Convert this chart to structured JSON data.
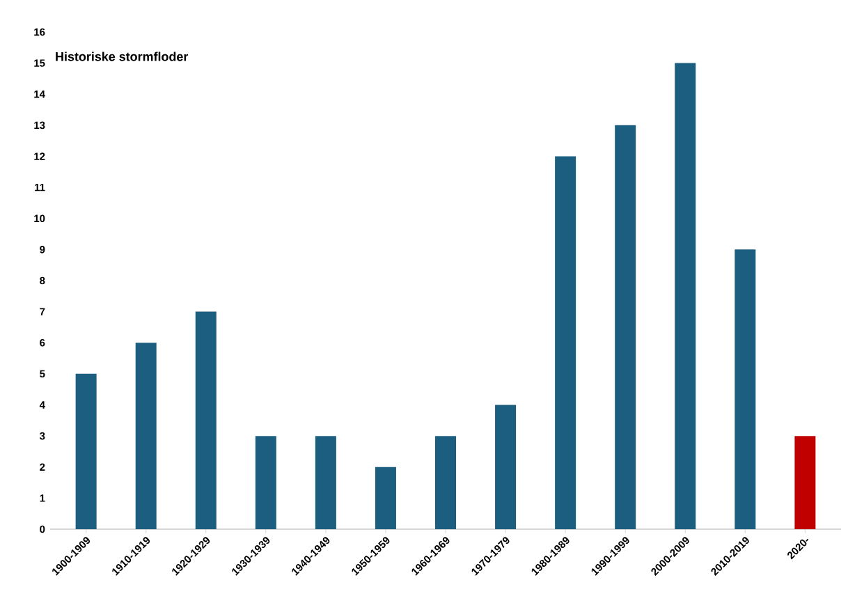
{
  "chart_data": {
    "type": "bar",
    "title": "Historiske stormfloder",
    "categories": [
      "1900-1909",
      "1910-1919",
      "1920-1929",
      "1930-1939",
      "1940-1949",
      "1950-1959",
      "1960-1969",
      "1970-1979",
      "1980-1989",
      "1990-1999",
      "2000-2009",
      "2010-2019",
      "2020-"
    ],
    "values": [
      5,
      6,
      7,
      3,
      3,
      2,
      3,
      4,
      12,
      13,
      15,
      9,
      3
    ],
    "colors": [
      "#1b5e80",
      "#1b5e80",
      "#1b5e80",
      "#1b5e80",
      "#1b5e80",
      "#1b5e80",
      "#1b5e80",
      "#1b5e80",
      "#1b5e80",
      "#1b5e80",
      "#1b5e80",
      "#1b5e80",
      "#c00000"
    ],
    "ylim": [
      0,
      16
    ],
    "yticks": [
      0,
      1,
      2,
      3,
      4,
      5,
      6,
      7,
      8,
      9,
      10,
      11,
      12,
      13,
      14,
      15,
      16
    ]
  }
}
